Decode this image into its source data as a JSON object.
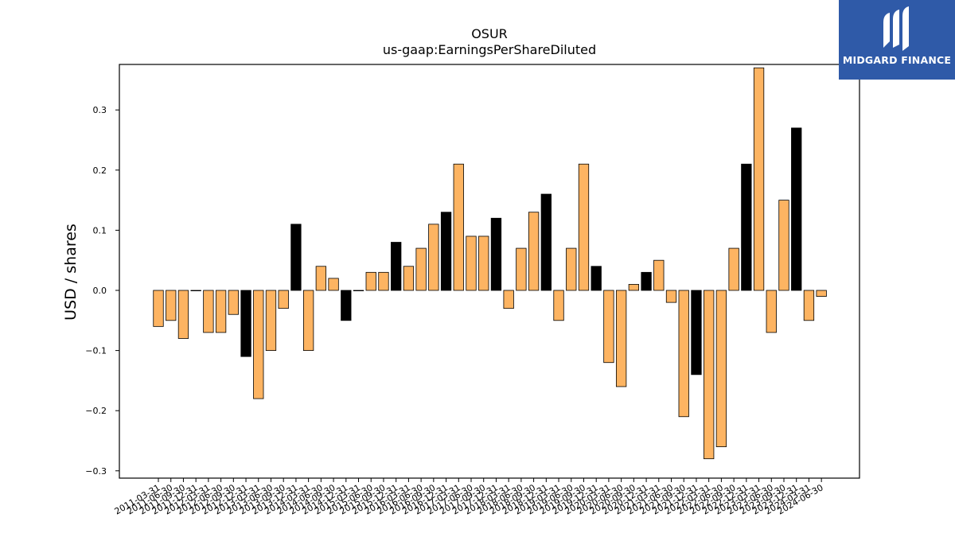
{
  "logo": {
    "text": "MIDGARD FINANCE"
  },
  "colors": {
    "normal_bar": "#fdb462",
    "highlight_bar": "#000000",
    "logo_bg": "#2f5aa8"
  },
  "chart_data": {
    "type": "bar",
    "title": "OSUR",
    "subtitle": "us-gaap:EarningsPerShareDiluted",
    "xlabel": "",
    "ylabel": "USD / shares",
    "ylim": [
      -0.312,
      0.375
    ],
    "yticks": [
      -0.3,
      -0.2,
      -0.1,
      0.0,
      0.1,
      0.2,
      0.3
    ],
    "ytick_labels": [
      "−0.3",
      "−0.2",
      "−0.1",
      "0.0",
      "0.1",
      "0.2",
      "0.3"
    ],
    "grid": false,
    "categories": [
      "2011-03-31",
      "2011-06-30",
      "2011-09-30",
      "2011-12-31",
      "2012-03-31",
      "2012-06-30",
      "2012-09-30",
      "2012-12-31",
      "2013-03-31",
      "2013-06-30",
      "2013-09-30",
      "2013-12-31",
      "2014-03-31",
      "2014-06-30",
      "2014-09-30",
      "2014-12-31",
      "2015-03-31",
      "2015-06-30",
      "2015-09-30",
      "2015-12-31",
      "2016-03-31",
      "2016-06-30",
      "2016-09-30",
      "2016-12-31",
      "2017-03-31",
      "2017-06-30",
      "2017-09-30",
      "2017-12-31",
      "2018-03-31",
      "2018-06-30",
      "2018-09-30",
      "2018-12-31",
      "2019-03-31",
      "2019-06-30",
      "2019-09-30",
      "2019-12-31",
      "2020-03-31",
      "2020-06-30",
      "2020-09-30",
      "2020-12-31",
      "2021-03-31",
      "2021-06-30",
      "2021-09-30",
      "2021-12-31",
      "2022-03-31",
      "2022-06-30",
      "2022-09-30",
      "2022-12-31",
      "2023-03-31",
      "2023-06-30",
      "2023-09-30",
      "2023-12-31",
      "2024-03-31",
      "2024-06-30"
    ],
    "values": [
      -0.06,
      -0.05,
      -0.08,
      0.0,
      -0.07,
      -0.07,
      -0.04,
      -0.11,
      -0.18,
      -0.1,
      -0.03,
      0.11,
      -0.1,
      0.04,
      0.02,
      -0.05,
      0.0,
      0.03,
      0.03,
      0.08,
      0.04,
      0.07,
      0.11,
      0.13,
      0.21,
      0.09,
      0.09,
      0.12,
      -0.03,
      0.07,
      0.13,
      0.16,
      -0.05,
      0.07,
      0.21,
      0.04,
      -0.12,
      -0.16,
      0.01,
      0.03,
      0.05,
      -0.02,
      -0.21,
      -0.14,
      -0.28,
      -0.26,
      0.07,
      0.21,
      0.37,
      -0.07,
      0.15,
      0.27,
      -0.05,
      -0.01
    ],
    "highlight": [
      false,
      false,
      false,
      false,
      false,
      false,
      false,
      true,
      false,
      false,
      false,
      true,
      false,
      false,
      false,
      true,
      false,
      false,
      false,
      true,
      false,
      false,
      false,
      true,
      false,
      false,
      false,
      true,
      false,
      false,
      false,
      true,
      false,
      false,
      false,
      true,
      false,
      false,
      false,
      true,
      false,
      false,
      false,
      true,
      false,
      false,
      false,
      true,
      false,
      false,
      false,
      true,
      false,
      false
    ]
  }
}
